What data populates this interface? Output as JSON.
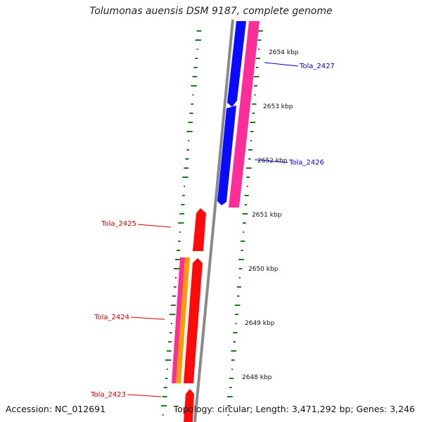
{
  "title": "Tolumonas auensis DSM 9187, complete genome",
  "footer": {
    "accession": "Accession: NC_012691",
    "summary": "Topology: circular; Length: 3,471,292 bp; Genes: 3,246"
  },
  "colors": {
    "backbone": "#8a8a8a",
    "gc_ticks": "#1d7a1d",
    "gene_blue": "#0a0aff",
    "gene_pink": "#ff2d9a",
    "gene_red": "#ff0a0a",
    "gene_orange": "#ff9a00",
    "label_blue": "#0000cc",
    "label_red": "#cc0000"
  },
  "kbp_ticks": [
    {
      "label": "2654 kbp"
    },
    {
      "label": "2653 kbp"
    },
    {
      "label": "2652 kbp"
    },
    {
      "label": "2651 kbp"
    },
    {
      "label": "2650 kbp"
    },
    {
      "label": "2649 kbp"
    },
    {
      "label": "2648 kbp"
    }
  ],
  "gene_labels": [
    {
      "text": "Tola_2427",
      "color": "blue"
    },
    {
      "text": "Tola_2426",
      "color": "blue"
    },
    {
      "text": "Tola_2425",
      "color": "red"
    },
    {
      "text": "Tola_2424",
      "color": "red"
    },
    {
      "text": "Tola_2423",
      "color": "red"
    }
  ]
}
